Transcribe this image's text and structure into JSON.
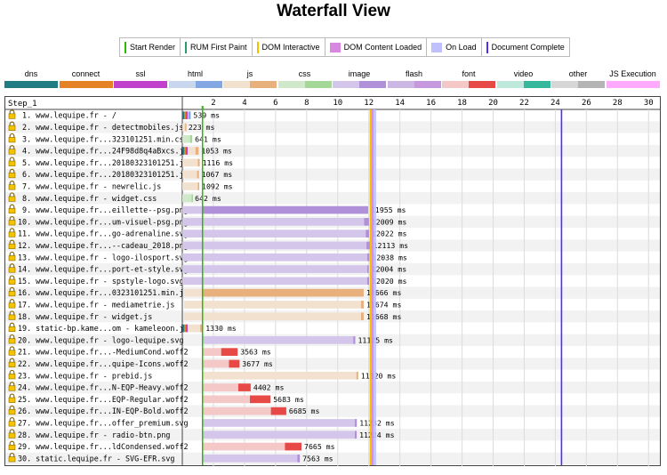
{
  "page_title": "Waterfall View",
  "legend_markers": [
    {
      "label": "Start Render",
      "color": "#28bc00",
      "kind": "line"
    },
    {
      "label": "RUM First Paint",
      "color": "#2a9b6b",
      "kind": "line"
    },
    {
      "label": "DOM Interactive",
      "color": "#f3c000",
      "kind": "line"
    },
    {
      "label": "DOM Content Loaded",
      "color": "#d888df",
      "kind": "box"
    },
    {
      "label": "On Load",
      "color": "#c0c0ff",
      "kind": "box"
    },
    {
      "label": "Document Complete",
      "color": "#4b2fff",
      "kind": "line"
    }
  ],
  "legend_types": [
    {
      "label": "dns",
      "c1": "#1f7c83",
      "c2": "#1f7c83"
    },
    {
      "label": "connect",
      "c1": "#e58226",
      "c2": "#e58226"
    },
    {
      "label": "ssl",
      "c1": "#c141cd",
      "c2": "#c141cd"
    },
    {
      "label": "html",
      "c1": "#c8d6ee",
      "c2": "#82a7e2"
    },
    {
      "label": "js",
      "c1": "#f2e1cf",
      "c2": "#e8b07c"
    },
    {
      "label": "css",
      "c1": "#cfe8c9",
      "c2": "#a3d896"
    },
    {
      "label": "image",
      "c1": "#d3c6ea",
      "c2": "#b090d8"
    },
    {
      "label": "flash",
      "c1": "#cbb6e4",
      "c2": "#c698dd"
    },
    {
      "label": "font",
      "c1": "#f3c8c6",
      "c2": "#e74a46"
    },
    {
      "label": "video",
      "c1": "#bfe8dc",
      "c2": "#36b89c"
    },
    {
      "label": "other",
      "c1": "#d6d6d6",
      "c2": "#b4b4b4"
    },
    {
      "label": "JS Execution",
      "c1": "#ffaaff",
      "c2": "#ffaaff"
    }
  ],
  "chart_data": {
    "type": "waterfall",
    "step_label": "Step_1",
    "x_ticks": [
      2,
      4,
      6,
      8,
      10,
      12,
      14,
      16,
      18,
      20,
      22,
      24,
      26,
      28,
      30
    ],
    "xlim": [
      0,
      30.5
    ],
    "unit": "s",
    "markers": {
      "start_render": 1.3,
      "rum_first_paint": 1.3,
      "dom_interactive": 12.1,
      "dom_content_loaded": 12.2,
      "on_load": 12.3,
      "document_complete": 24.4
    },
    "requests": [
      {
        "label": " 1. www.lequipe.fr - /",
        "start": 0.0,
        "ttfb_end": 0.4,
        "end": 0.54,
        "duration_label": "539 ms",
        "type": "html",
        "conn": true
      },
      {
        "label": " 2. www.lequipe.fr - detectmobiles.js",
        "start": 0.0,
        "ttfb_end": 0.18,
        "end": 0.22,
        "duration_label": "223 ms",
        "type": "js"
      },
      {
        "label": " 3. www.lequipe.fr...323101251.min.css",
        "start": 0.0,
        "ttfb_end": 0.5,
        "end": 0.64,
        "duration_label": "641 ms",
        "type": "css"
      },
      {
        "label": " 4. www.lequipe.fr...24F98d8q4aBxcs.js",
        "start": 0.0,
        "ttfb_end": 0.85,
        "end": 1.05,
        "duration_label": "1053 ms",
        "type": "js",
        "conn": true
      },
      {
        "label": " 5. www.lequipe.fr...20180323101251.js",
        "start": 0.0,
        "ttfb_end": 1.0,
        "end": 1.12,
        "duration_label": "1116 ms",
        "type": "js"
      },
      {
        "label": " 6. www.lequipe.fr...20180323101251.js",
        "start": 0.0,
        "ttfb_end": 0.95,
        "end": 1.07,
        "duration_label": "1067 ms",
        "type": "js"
      },
      {
        "label": " 7. www.lequipe.fr - newrelic.js",
        "start": 0.0,
        "ttfb_end": 1.0,
        "end": 1.09,
        "duration_label": "1092 ms",
        "type": "js"
      },
      {
        "label": " 8. www.lequipe.fr - widget.css",
        "start": 0.0,
        "ttfb_end": 0.6,
        "end": 0.64,
        "duration_label": "642 ms",
        "type": "css"
      },
      {
        "label": " 9. www.lequipe.fr...eillette--psg.png",
        "start": 0.0,
        "ttfb_end": 1.3,
        "end": 11.96,
        "duration_label": "11955 ms",
        "type": "image"
      },
      {
        "label": "10. www.lequipe.fr...um-visuel-psg.png",
        "start": 0.0,
        "ttfb_end": 11.7,
        "end": 12.01,
        "duration_label": "12009 ms",
        "type": "image"
      },
      {
        "label": "11. www.lequipe.fr...go-adrenaline.svg",
        "start": 0.0,
        "ttfb_end": 11.8,
        "end": 12.02,
        "duration_label": "12022 ms",
        "type": "image"
      },
      {
        "label": "12. www.lequipe.fr...--cadeau_2018.png",
        "start": 0.0,
        "ttfb_end": 11.85,
        "end": 12.11,
        "duration_label": "12113 ms",
        "type": "image"
      },
      {
        "label": "13. www.lequipe.fr - logo-ilosport.svg",
        "start": 0.0,
        "ttfb_end": 11.9,
        "end": 12.04,
        "duration_label": "12038 ms",
        "type": "image"
      },
      {
        "label": "14. www.lequipe.fr...port-et-style.svg",
        "start": 0.0,
        "ttfb_end": 11.9,
        "end": 12.0,
        "duration_label": "12004 ms",
        "type": "image"
      },
      {
        "label": "15. www.lequipe.fr - spstyle-logo.svg",
        "start": 0.0,
        "ttfb_end": 11.9,
        "end": 12.02,
        "duration_label": "12020 ms",
        "type": "image"
      },
      {
        "label": "16. www.lequipe.fr...0323101251.min.js",
        "start": 0.1,
        "ttfb_end": 1.3,
        "end": 11.67,
        "duration_label": "11666 ms",
        "type": "js"
      },
      {
        "label": "17. www.lequipe.fr - mediametrie.js",
        "start": 0.1,
        "ttfb_end": 11.5,
        "end": 11.67,
        "duration_label": "11674 ms",
        "type": "js"
      },
      {
        "label": "18. www.lequipe.fr - widget.js",
        "start": 0.1,
        "ttfb_end": 11.5,
        "end": 11.67,
        "duration_label": "11668 ms",
        "type": "js"
      },
      {
        "label": "19. static-bp.kame...om - kameleoon.js",
        "start": 0.0,
        "ttfb_end": 1.15,
        "end": 1.33,
        "duration_label": "1330 ms",
        "type": "js",
        "conn": true
      },
      {
        "label": "20. www.lequipe.fr - logo-lequipe.svg",
        "start": 1.3,
        "ttfb_end": 11.0,
        "end": 11.13,
        "duration_label": "11125 ms",
        "type": "image"
      },
      {
        "label": "21. www.lequipe.fr...-MediumCond.woff2",
        "start": 1.3,
        "ttfb_end": 2.5,
        "end": 3.56,
        "duration_label": "3563 ms",
        "type": "font"
      },
      {
        "label": "22. www.lequipe.fr...quipe-Icons.woff2",
        "start": 1.3,
        "ttfb_end": 3.0,
        "end": 3.68,
        "duration_label": "3677 ms",
        "type": "font"
      },
      {
        "label": "23. www.lequipe.fr - prebid.js",
        "start": 1.3,
        "ttfb_end": 11.2,
        "end": 11.32,
        "duration_label": "11320 ms",
        "type": "js"
      },
      {
        "label": "24. www.lequipe.fr...N-EQP-Heavy.woff2",
        "start": 1.3,
        "ttfb_end": 3.6,
        "end": 4.4,
        "duration_label": "4402 ms",
        "type": "font"
      },
      {
        "label": "25. www.lequipe.fr...EQP-Regular.woff2",
        "start": 1.3,
        "ttfb_end": 4.35,
        "end": 5.68,
        "duration_label": "5683 ms",
        "type": "font"
      },
      {
        "label": "26. www.lequipe.fr...IN-EQP-Bold.woff2",
        "start": 1.3,
        "ttfb_end": 5.7,
        "end": 6.69,
        "duration_label": "6685 ms",
        "type": "font"
      },
      {
        "label": "27. www.lequipe.fr...offer_premium.svg",
        "start": 1.3,
        "ttfb_end": 11.1,
        "end": 11.23,
        "duration_label": "11232 ms",
        "type": "image"
      },
      {
        "label": "28. www.lequipe.fr - radio-btn.png",
        "start": 1.3,
        "ttfb_end": 11.1,
        "end": 11.22,
        "duration_label": "11224 ms",
        "type": "image"
      },
      {
        "label": "29. www.lequipe.fr...ldCondensed.woff2",
        "start": 1.3,
        "ttfb_end": 6.6,
        "end": 7.67,
        "duration_label": "7665 ms",
        "type": "font"
      },
      {
        "label": "30. static.lequipe.fr - SVG-EFR.svg",
        "start": 1.3,
        "ttfb_end": 7.4,
        "end": 7.56,
        "duration_label": "7563 ms",
        "type": "image"
      }
    ]
  }
}
